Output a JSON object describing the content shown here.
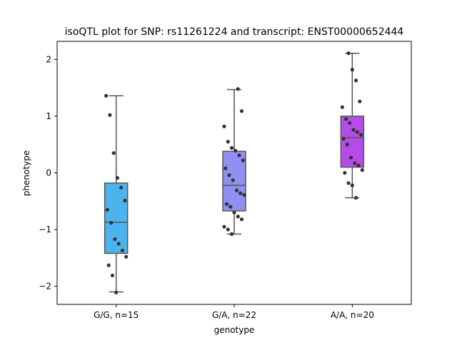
{
  "chart_data": {
    "type": "box",
    "title": "isoQTL plot for SNP: rs11261224 and transcript: ENST00000652444",
    "xlabel": "genotype",
    "ylabel": "phenotype",
    "ylim": [
      -2.32,
      2.32
    ],
    "yticks": [
      -2,
      -1,
      0,
      1,
      2
    ],
    "grid": false,
    "categories": [
      "G/G, n=15",
      "G/A, n=22",
      "A/A, n=20"
    ],
    "colors": [
      "#4cb4ec",
      "#9090f2",
      "#b54ce8"
    ],
    "box_stats": [
      {
        "min": -2.1,
        "q1": -1.42,
        "median": -0.87,
        "q3": -0.18,
        "max": 1.36
      },
      {
        "min": -1.08,
        "q1": -0.67,
        "median": -0.22,
        "q3": 0.38,
        "max": 1.47
      },
      {
        "min": -0.44,
        "q1": 0.1,
        "median": 0.62,
        "q3": 1.0,
        "max": 2.11
      }
    ],
    "points": [
      [
        1.36,
        1.02,
        0.35,
        -0.09,
        -0.26,
        -0.49,
        -0.65,
        -0.88,
        -1.17,
        -1.25,
        -1.37,
        -1.48,
        -1.63,
        -1.81,
        -2.11
      ],
      [
        1.48,
        1.09,
        0.82,
        0.55,
        0.44,
        0.39,
        0.31,
        0.22,
        0.08,
        -0.04,
        -0.13,
        -0.31,
        -0.36,
        -0.39,
        -0.55,
        -0.6,
        -0.7,
        -0.77,
        -0.82,
        -0.95,
        -1.0,
        -1.08
      ],
      [
        2.11,
        1.82,
        1.63,
        1.26,
        1.16,
        0.95,
        0.88,
        0.76,
        0.72,
        0.67,
        0.6,
        0.5,
        0.27,
        0.17,
        0.13,
        0.05,
        0.0,
        -0.18,
        -0.22,
        -0.44
      ]
    ]
  }
}
